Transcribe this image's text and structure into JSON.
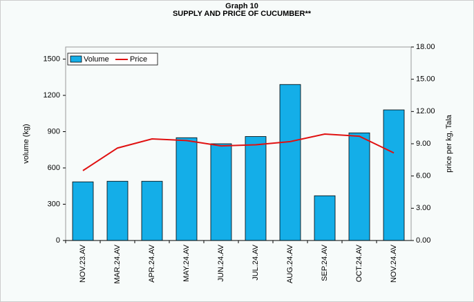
{
  "chart_data": {
    "type": "bar_line",
    "title": "Graph 10",
    "subtitle": "SUPPLY AND PRICE OF CUCUMBER**",
    "ylabel": "volume (kg)",
    "y2label": "price per kg, Tala",
    "categories": [
      "NOV.23.AV",
      "MAR.24.AV",
      "APR.24.AV",
      "MAY.24.AV",
      "JUN.24.AV",
      "JUL.24.AV",
      "AUG.24.AV",
      "SEP.24.AV",
      "OCT.24.AV",
      "NOV.24.AV"
    ],
    "series": [
      {
        "name": "Volume",
        "color": "#14aee8",
        "values": [
          485,
          490,
          490,
          850,
          800,
          860,
          1290,
          370,
          890,
          1080
        ]
      },
      {
        "name": "Price",
        "color": "#e01010",
        "axis": "y2",
        "values": [
          6.5,
          8.6,
          9.45,
          9.3,
          8.8,
          8.9,
          9.2,
          9.9,
          9.7,
          8.15
        ]
      }
    ],
    "ylim": [
      0,
      1600
    ],
    "yticks": [
      0,
      300,
      600,
      900,
      1200,
      1500
    ],
    "y2lim": [
      0,
      18
    ],
    "y2ticks": [
      {
        "value": 0,
        "label": "0.00"
      },
      {
        "value": 3,
        "label": "3.00"
      },
      {
        "value": 6,
        "label": "6.00"
      },
      {
        "value": 9,
        "label": "9.00"
      },
      {
        "value": 12,
        "label": "12.00"
      },
      {
        "value": 15,
        "label": "15.00"
      },
      {
        "value": 18,
        "label": "18.00"
      }
    ],
    "legend": "top-left"
  }
}
